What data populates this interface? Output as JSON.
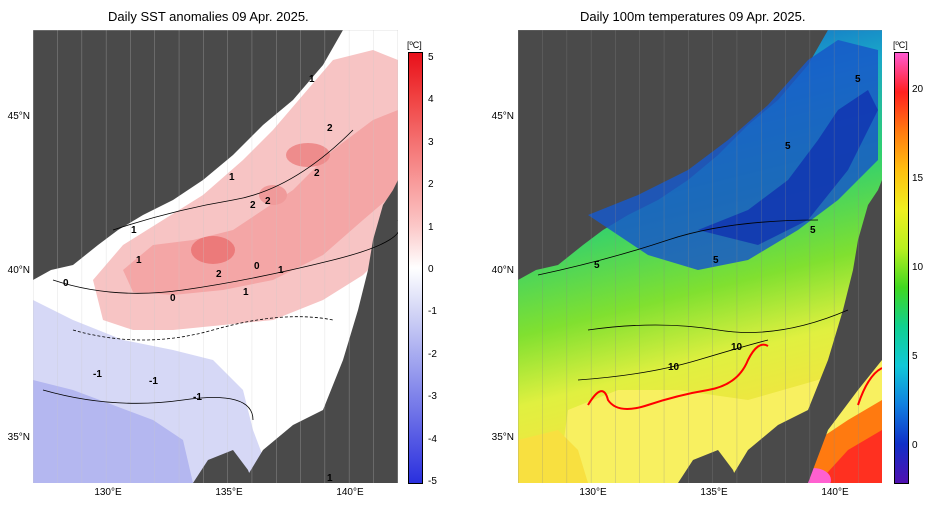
{
  "left_panel": {
    "title": "Daily SST anomalies 09 Apr. 2025.",
    "unit": "[ºC]",
    "colorbar_ticks": [
      "5",
      "4",
      "3",
      "2",
      "1",
      "0",
      "-1",
      "-2",
      "-3",
      "-4",
      "-5"
    ],
    "colorbar_colors": [
      "#e8101a",
      "#f04040",
      "#f46e6e",
      "#f89a9a",
      "#fbc6c6",
      "#ffffff",
      "#d4d6f6",
      "#a8acf0",
      "#7e82ea",
      "#5458e4",
      "#2a30de"
    ],
    "contour_labels": [
      "1",
      "2",
      "2",
      "1",
      "2",
      "2",
      "1",
      "1",
      "2",
      "0",
      "1",
      "0",
      "1",
      "0",
      "-1",
      "-1",
      "-1",
      "1"
    ],
    "lat_labels": [
      "45°N",
      "40°N",
      "35°N"
    ],
    "lon_labels": [
      "130°E",
      "135°E",
      "140°E"
    ]
  },
  "right_panel": {
    "title": "Daily 100m temperatures 09 Apr. 2025.",
    "unit": "[ºC]",
    "colorbar_ticks": [
      "20",
      "15",
      "10",
      "5",
      "0"
    ],
    "colorbar_colors": [
      "#ff5ad2",
      "#ff2020",
      "#ff7a10",
      "#ffc010",
      "#f0f020",
      "#b8f020",
      "#40d820",
      "#10d090",
      "#10c8d8",
      "#1080e0",
      "#1030c8",
      "#5010b0"
    ],
    "contour_labels": [
      "5",
      "5",
      "5",
      "5",
      "5",
      "10",
      "10"
    ],
    "lat_labels": [
      "45°N",
      "40°N",
      "35°N"
    ],
    "lon_labels": [
      "130°E",
      "135°E",
      "140°E"
    ]
  }
}
